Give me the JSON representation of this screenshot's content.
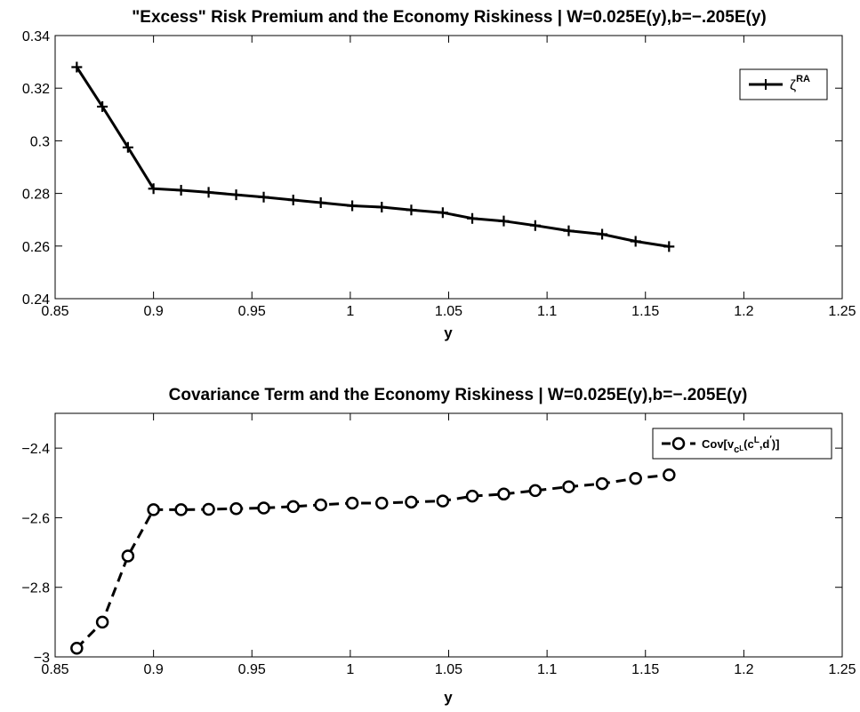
{
  "chart_data": [
    {
      "type": "line",
      "title": "\"Excess\" Risk Premium and the Economy Riskiness | W=0.025E(y),b=−.205E(y)",
      "xlabel": "y",
      "ylabel": "",
      "xlim": [
        0.85,
        1.25
      ],
      "ylim": [
        0.24,
        0.34
      ],
      "xticks": [
        "0.85",
        "0.9",
        "0.95",
        "1",
        "1.05",
        "1.1",
        "1.15",
        "1.2",
        "1.25"
      ],
      "yticks": [
        "0.24",
        "0.26",
        "0.28",
        "0.3",
        "0.32",
        "0.34"
      ],
      "legend_position": "top-right",
      "legend": {
        "symbol": "ζ",
        "superscript": "RA"
      },
      "marker": "plus",
      "line_style": "solid",
      "color": "#000000",
      "x": [
        0.861,
        0.874,
        0.887,
        0.9,
        0.914,
        0.928,
        0.942,
        0.956,
        0.971,
        0.985,
        1.001,
        1.016,
        1.031,
        1.047,
        1.062,
        1.078,
        1.094,
        1.111,
        1.128,
        1.145,
        1.162
      ],
      "y": [
        0.328,
        0.313,
        0.2975,
        0.2818,
        0.2812,
        0.2804,
        0.2795,
        0.2786,
        0.2775,
        0.2765,
        0.2753,
        0.2748,
        0.2737,
        0.2727,
        0.2705,
        0.2695,
        0.2678,
        0.2658,
        0.2645,
        0.2618,
        0.2598
      ]
    },
    {
      "type": "line",
      "title": "Covariance Term and the Economy Riskiness | W=0.025E(y),b=−.205E(y)",
      "xlabel": "y",
      "ylabel": "",
      "xlim": [
        0.85,
        1.25
      ],
      "ylim": [
        -3,
        -2.3
      ],
      "xticks": [
        "0.85",
        "0.9",
        "0.95",
        "1",
        "1.05",
        "1.1",
        "1.15",
        "1.2",
        "1.25"
      ],
      "yticks": [
        "−3",
        "−2.8",
        "−2.6",
        "−2.4"
      ],
      "legend_position": "top-right",
      "legend": {
        "main": "Cov[v",
        "sub_c": "c",
        "sub_L": "L",
        "mid": "(c",
        "sup_L": "L",
        "tail1": ",d",
        "prime": "′",
        "tail2": ")]"
      },
      "marker": "circle",
      "line_style": "dashed",
      "color": "#000000",
      "x": [
        0.861,
        0.874,
        0.887,
        0.9,
        0.914,
        0.928,
        0.942,
        0.956,
        0.971,
        0.985,
        1.001,
        1.016,
        1.031,
        1.047,
        1.062,
        1.078,
        1.094,
        1.111,
        1.128,
        1.145,
        1.162
      ],
      "y": [
        -2.975,
        -2.9,
        -2.71,
        -2.577,
        -2.577,
        -2.576,
        -2.574,
        -2.572,
        -2.568,
        -2.563,
        -2.558,
        -2.558,
        -2.555,
        -2.552,
        -2.538,
        -2.532,
        -2.522,
        -2.511,
        -2.502,
        -2.487,
        -2.477
      ]
    }
  ]
}
